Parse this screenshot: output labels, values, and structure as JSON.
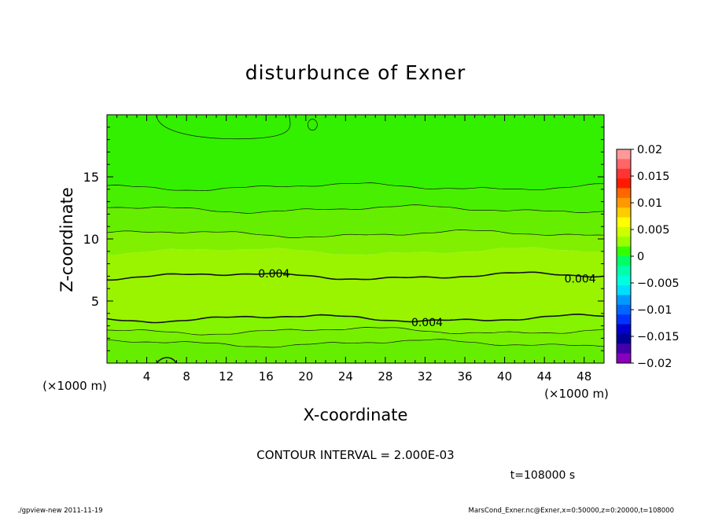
{
  "chart_data": {
    "type": "heatmap",
    "title": "disturbunce of Exner",
    "xlabel": "X-coordinate",
    "ylabel": "Z-coordinate",
    "x_unit_label": "(×1000 m)",
    "y_unit_label": "(×1000 m)",
    "xlim": [
      0,
      50
    ],
    "ylim": [
      0,
      20
    ],
    "xticks": [
      4,
      8,
      12,
      16,
      20,
      24,
      28,
      32,
      36,
      40,
      44,
      48
    ],
    "yticks": [
      5,
      10,
      15
    ],
    "contour_interval_text": "CONTOUR INTERVAL = 2.000E-03",
    "time_text": "t=108000 s",
    "contour_labels": [
      {
        "text": "0.004",
        "x": 16.8,
        "y": 7.2
      },
      {
        "text": "0.004",
        "x": 47.6,
        "y": 6.8
      },
      {
        "text": "0.004",
        "x": 32.2,
        "y": 3.3
      }
    ],
    "bands": [
      {
        "z_from": 0.0,
        "z_to": 1.6,
        "value": 0.002,
        "color": "#66ee00"
      },
      {
        "z_from": 1.6,
        "z_to": 2.6,
        "value": 0.003,
        "color": "#77f000"
      },
      {
        "z_from": 2.6,
        "z_to": 3.6,
        "value": 0.0035,
        "color": "#84f400"
      },
      {
        "z_from": 3.6,
        "z_to": 9.0,
        "value": 0.0045,
        "color": "#9af400"
      },
      {
        "z_from": 9.0,
        "z_to": 10.4,
        "value": 0.003,
        "color": "#80f000"
      },
      {
        "z_from": 10.4,
        "z_to": 12.4,
        "value": 0.002,
        "color": "#66ee00"
      },
      {
        "z_from": 12.4,
        "z_to": 14.2,
        "value": 0.001,
        "color": "#48ef00"
      },
      {
        "z_from": 14.2,
        "z_to": 20.0,
        "value": 0.0,
        "color": "#33f000"
      }
    ],
    "colorbar": {
      "labels": [
        "0.02",
        "0.015",
        "0.01",
        "0.005",
        "0",
        "−0.005",
        "−0.01",
        "−0.015",
        "−0.02"
      ],
      "levels": [
        0.02,
        0.015,
        0.01,
        0.005,
        0,
        -0.005,
        -0.01,
        -0.015,
        -0.02
      ],
      "colors": [
        "#ff9999",
        "#ff6666",
        "#ff3333",
        "#ff1a00",
        "#ff6600",
        "#ff9900",
        "#ffcc00",
        "#ffff00",
        "#ccff00",
        "#99ff00",
        "#33ff00",
        "#00ff66",
        "#00ffaa",
        "#00ffdd",
        "#00ddff",
        "#0099ff",
        "#0066ff",
        "#0033ff",
        "#0000cc",
        "#000099",
        "#4400aa",
        "#8800bb"
      ]
    }
  },
  "footer": {
    "left": "./gpview-new   2011-11-19",
    "right": "MarsCond_Exner.nc@Exner,x=0:50000,z=0:20000,t=108000"
  }
}
